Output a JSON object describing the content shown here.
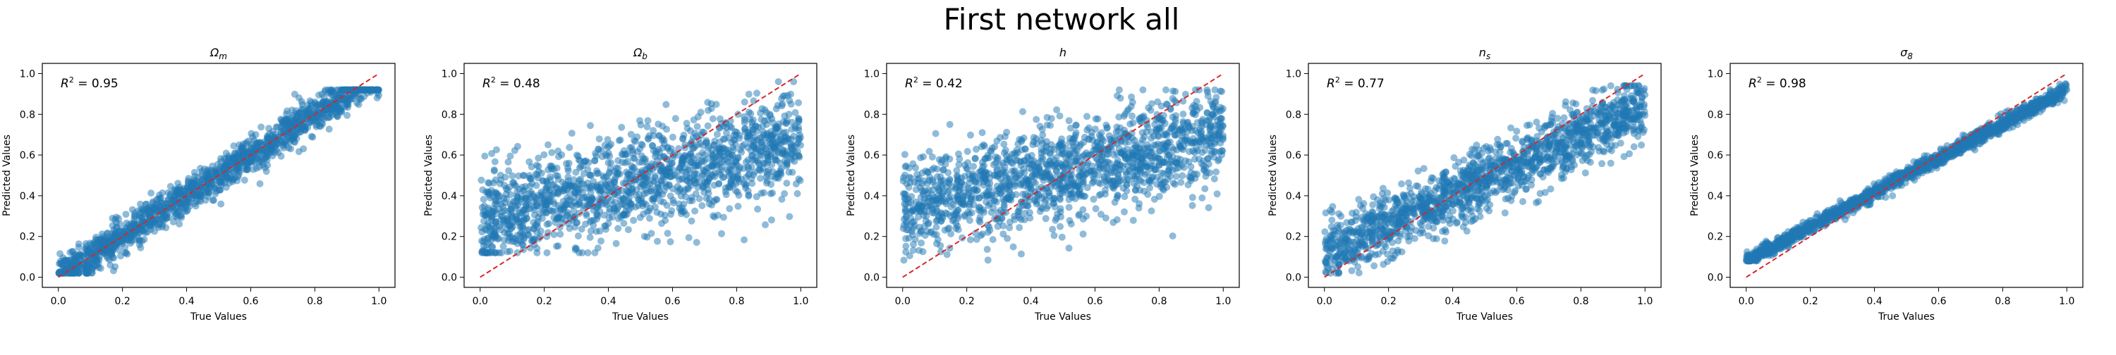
{
  "figure": {
    "title": "First network all"
  },
  "style": {
    "point_color": "#1f77b4",
    "point_opacity": 0.5,
    "reference_line_color": "#d62728",
    "axes_color": "#000000",
    "background": "#ffffff"
  },
  "chart_data": [
    {
      "type": "scatter",
      "title_main": "Ω",
      "title_sub": "m",
      "xlabel": "True Values",
      "ylabel": "Predicted Values",
      "annotation": {
        "label": "R",
        "sup": "2",
        "value": " = 0.95"
      },
      "xlim": [
        -0.05,
        1.05
      ],
      "ylim": [
        -0.05,
        1.05
      ],
      "xticks": [
        "0.0",
        "0.2",
        "0.4",
        "0.6",
        "0.8",
        "1.0"
      ],
      "yticks": [
        "0.0",
        "0.2",
        "0.4",
        "0.6",
        "0.8",
        "1.0"
      ],
      "reference_line": {
        "x": [
          0,
          1
        ],
        "y": [
          0,
          1
        ],
        "style": "dashed"
      },
      "point_cloud": {
        "n": 1500,
        "y_min": 0.02,
        "y_max": 0.92,
        "intercept": 0.0,
        "slope": 1.0,
        "noise": 0.045,
        "seed": 11
      }
    },
    {
      "type": "scatter",
      "title_main": "Ω",
      "title_sub": "b",
      "xlabel": "True Values",
      "ylabel": "Predicted Values",
      "annotation": {
        "label": "R",
        "sup": "2",
        "value": " = 0.48"
      },
      "xlim": [
        -0.05,
        1.05
      ],
      "ylim": [
        -0.05,
        1.05
      ],
      "xticks": [
        "0.0",
        "0.2",
        "0.4",
        "0.6",
        "0.8",
        "1.0"
      ],
      "yticks": [
        "0.0",
        "0.2",
        "0.4",
        "0.6",
        "0.8",
        "1.0"
      ],
      "reference_line": {
        "x": [
          0,
          1
        ],
        "y": [
          0,
          1
        ],
        "style": "dashed"
      },
      "point_cloud": {
        "n": 1500,
        "y_min": 0.12,
        "y_max": 0.96,
        "intercept": 0.28,
        "slope": 0.38,
        "noise": 0.12,
        "seed": 23
      }
    },
    {
      "type": "scatter",
      "title_main": "h",
      "title_sub": "",
      "xlabel": "True Values",
      "ylabel": "Predicted Values",
      "annotation": {
        "label": "R",
        "sup": "2",
        "value": " = 0.42"
      },
      "xlim": [
        -0.05,
        1.05
      ],
      "ylim": [
        -0.05,
        1.05
      ],
      "xticks": [
        "0.0",
        "0.2",
        "0.4",
        "0.6",
        "0.8",
        "1.0"
      ],
      "yticks": [
        "0.0",
        "0.2",
        "0.4",
        "0.6",
        "0.8",
        "1.0"
      ],
      "reference_line": {
        "x": [
          0,
          1
        ],
        "y": [
          0,
          1
        ],
        "style": "dashed"
      },
      "point_cloud": {
        "n": 1500,
        "y_min": 0.04,
        "y_max": 0.92,
        "intercept": 0.33,
        "slope": 0.38,
        "noise": 0.12,
        "seed": 37
      }
    },
    {
      "type": "scatter",
      "title_main": "n",
      "title_sub": "s",
      "xlabel": "True Values",
      "ylabel": "Predicted Values",
      "annotation": {
        "label": "R",
        "sup": "2",
        "value": " = 0.77"
      },
      "xlim": [
        -0.05,
        1.05
      ],
      "ylim": [
        -0.05,
        1.05
      ],
      "xticks": [
        "0.0",
        "0.2",
        "0.4",
        "0.6",
        "0.8",
        "1.0"
      ],
      "yticks": [
        "0.0",
        "0.2",
        "0.4",
        "0.6",
        "0.8",
        "1.0"
      ],
      "reference_line": {
        "x": [
          0,
          1
        ],
        "y": [
          0,
          1
        ],
        "style": "dashed"
      },
      "point_cloud": {
        "n": 1500,
        "y_min": 0.02,
        "y_max": 0.94,
        "intercept": 0.12,
        "slope": 0.72,
        "noise": 0.08,
        "seed": 53
      }
    },
    {
      "type": "scatter",
      "title_main": "σ",
      "title_sub": "8",
      "xlabel": "True Values",
      "ylabel": "Predicted Values",
      "annotation": {
        "label": "R",
        "sup": "2",
        "value": " = 0.98"
      },
      "xlim": [
        -0.05,
        1.05
      ],
      "ylim": [
        -0.05,
        1.05
      ],
      "xticks": [
        "0.0",
        "0.2",
        "0.4",
        "0.6",
        "0.8",
        "1.0"
      ],
      "yticks": [
        "0.0",
        "0.2",
        "0.4",
        "0.6",
        "0.8",
        "1.0"
      ],
      "reference_line": {
        "x": [
          0,
          1
        ],
        "y": [
          0,
          1
        ],
        "style": "dashed"
      },
      "point_cloud": {
        "n": 1500,
        "y_min": 0.08,
        "y_max": 0.95,
        "intercept": 0.08,
        "slope": 0.84,
        "noise": 0.018,
        "seed": 71
      }
    }
  ]
}
